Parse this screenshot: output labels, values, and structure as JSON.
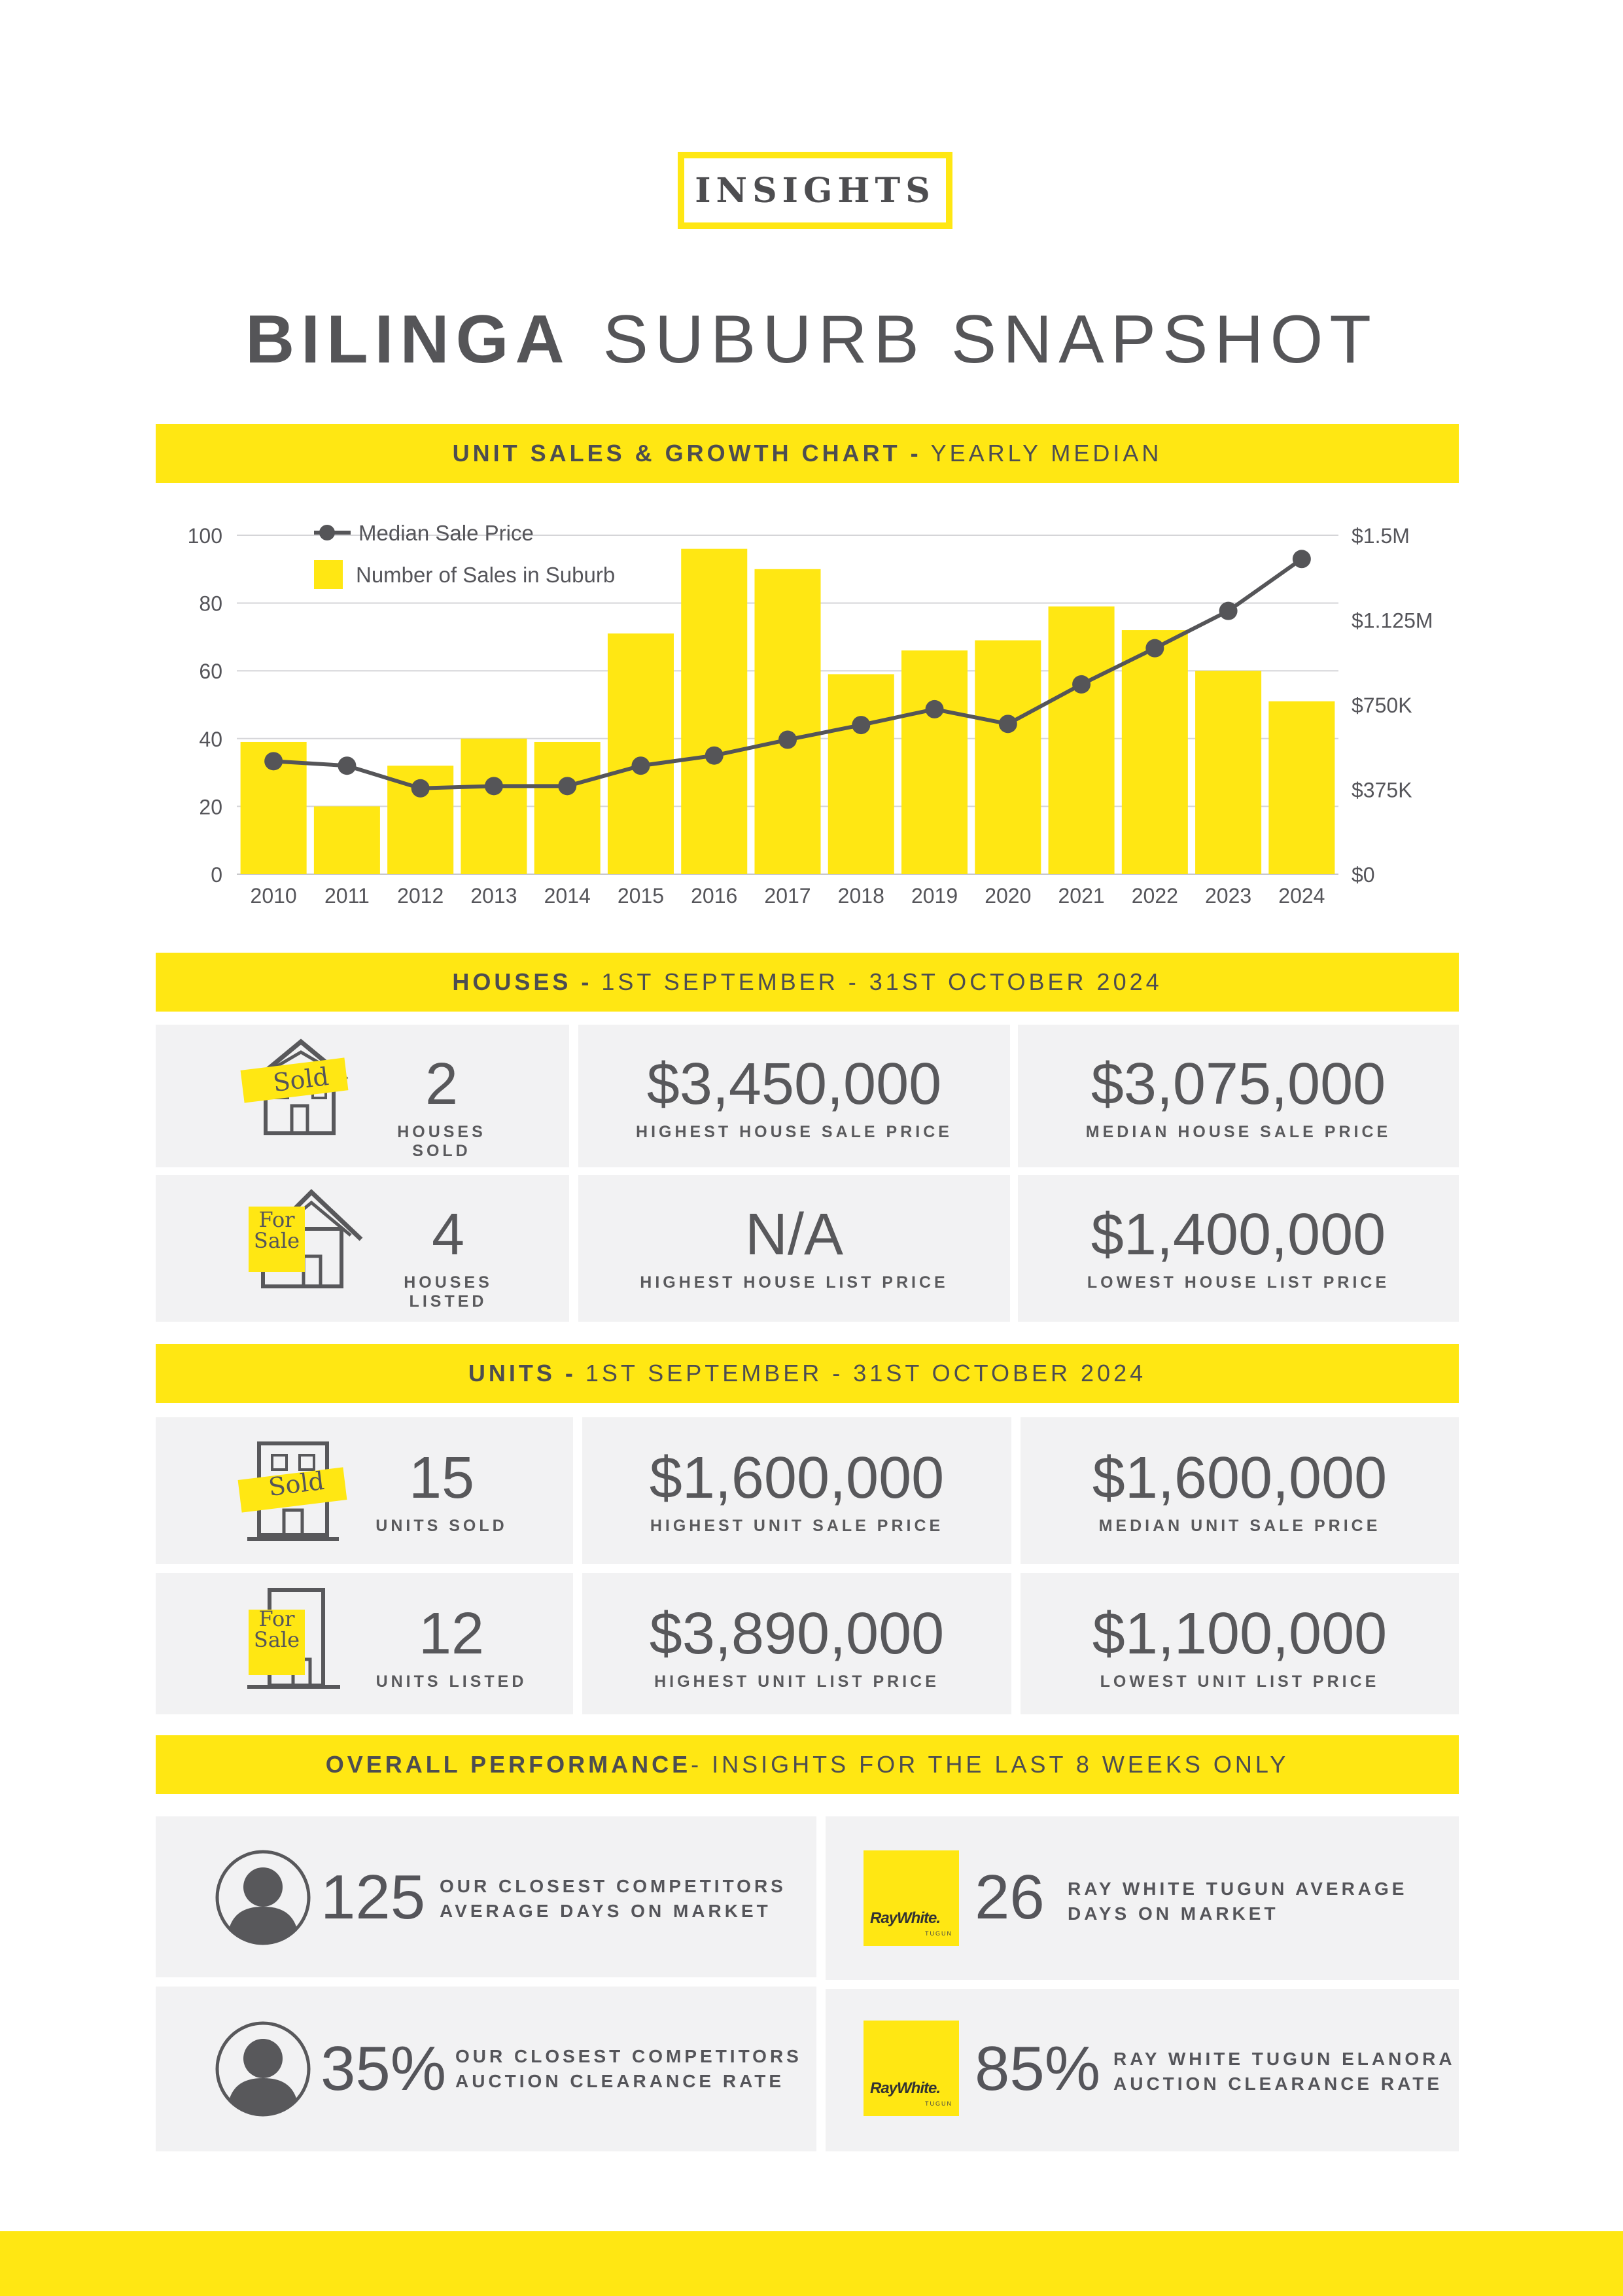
{
  "header": {
    "badge": "INSIGHTS",
    "title_bold": "BILINGA",
    "title_light": "SUBURB SNAPSHOT"
  },
  "chart_section": {
    "title_bold": "UNIT SALES & GROWTH CHART -",
    "title_light": "YEARLY MEDIAN"
  },
  "chart_data": {
    "type": "bar",
    "categories": [
      "2010",
      "2011",
      "2012",
      "2013",
      "2014",
      "2015",
      "2016",
      "2017",
      "2018",
      "2019",
      "2020",
      "2021",
      "2022",
      "2023",
      "2024"
    ],
    "series": [
      {
        "name": "Number of Sales in Suburb",
        "type": "bar",
        "axis": "left",
        "values": [
          39,
          20,
          32,
          40,
          39,
          71,
          96,
          90,
          59,
          66,
          69,
          79,
          72,
          60,
          51
        ]
      },
      {
        "name": "Median Sale Price",
        "type": "line",
        "axis": "right",
        "values": [
          500000,
          480000,
          380000,
          390000,
          390000,
          480000,
          525000,
          595000,
          660000,
          730000,
          665000,
          840000,
          1000000,
          1165000,
          1395000
        ]
      }
    ],
    "ylim": [
      0,
      100
    ],
    "yticks": [
      "0",
      "20",
      "40",
      "60",
      "80",
      "100"
    ],
    "y2lim": [
      0,
      1500000
    ],
    "y2ticks": [
      "$0",
      "$375K",
      "$750K",
      "$1.125M",
      "$1.5M"
    ],
    "grid": true,
    "legend": "top-left",
    "colors": {
      "bar": "#ffe713",
      "line": "#555558"
    }
  },
  "houses": {
    "title_bold": "HOUSES -",
    "title_light": "1ST SEPTEMBER - 31ST OCTOBER 2024",
    "sold_sign": "Sold",
    "sale_sign_1": "For",
    "sale_sign_2": "Sale",
    "sold_count": "2",
    "sold_label": "HOUSES SOLD",
    "highest_sale": "$3,450,000",
    "highest_sale_label": "HIGHEST HOUSE SALE PRICE",
    "median_sale": "$3,075,000",
    "median_sale_label": "MEDIAN HOUSE SALE PRICE",
    "listed_count": "4",
    "listed_label": "HOUSES LISTED",
    "highest_list": "N/A",
    "highest_list_label": "HIGHEST HOUSE LIST PRICE",
    "lowest_list": "$1,400,000",
    "lowest_list_label": "LOWEST HOUSE LIST PRICE"
  },
  "units": {
    "title_bold": "UNITS -",
    "title_light": "1ST SEPTEMBER - 31ST OCTOBER 2024",
    "sold_sign": "Sold",
    "sale_sign_1": "For",
    "sale_sign_2": "Sale",
    "sold_count": "15",
    "sold_label": "UNITS SOLD",
    "highest_sale": "$1,600,000",
    "highest_sale_label": "HIGHEST UNIT SALE PRICE",
    "median_sale": "$1,600,000",
    "median_sale_label": "MEDIAN UNIT SALE PRICE",
    "listed_count": "12",
    "listed_label": "UNITS LISTED",
    "highest_list": "$3,890,000",
    "highest_list_label": "HIGHEST UNIT LIST PRICE",
    "lowest_list": "$1,100,000",
    "lowest_list_label": "LOWEST UNIT LIST PRICE"
  },
  "performance": {
    "title_bold": "OVERALL PERFORMANCE",
    "title_light": "- INSIGHTS FOR THE LAST 8 WEEKS ONLY",
    "brand": "RayWhite.",
    "brand_sub": "TUGUN",
    "comp_days": "125",
    "comp_days_l1": "OUR CLOSEST COMPETITORS",
    "comp_days_l2": "AVERAGE DAYS ON MARKET",
    "rw_days": "26",
    "rw_days_l1": "RAY WHITE TUGUN AVERAGE",
    "rw_days_l2": "DAYS ON MARKET",
    "comp_rate": "35%",
    "comp_rate_l1": "OUR CLOSEST COMPETITORS",
    "comp_rate_l2": "AUCTION CLEARANCE RATE",
    "rw_rate": "85%",
    "rw_rate_l1": "RAY WHITE TUGUN ELANORA",
    "rw_rate_l2": "AUCTION CLEARANCE RATE"
  }
}
